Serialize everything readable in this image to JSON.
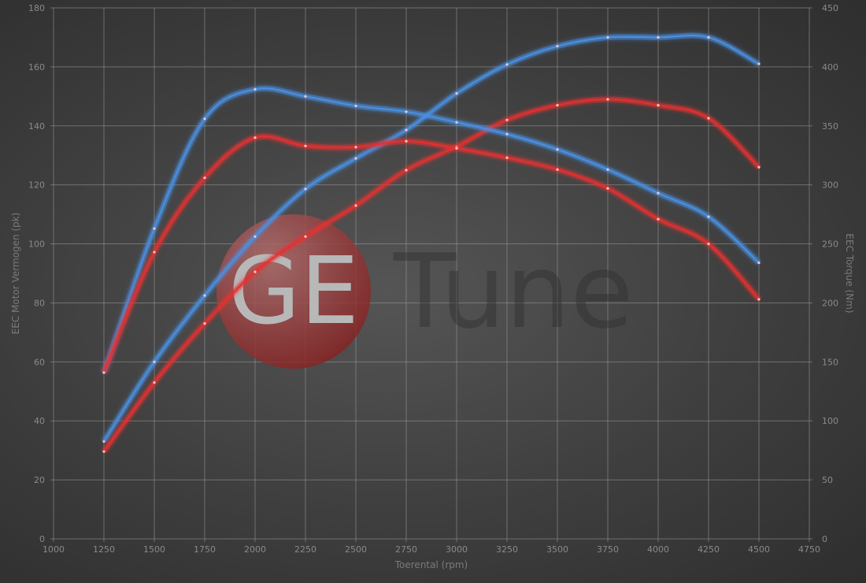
{
  "watermark": {
    "logo_letters": "GE",
    "text": "Tune"
  },
  "chart_data": {
    "type": "line",
    "title": "",
    "xlabel": "Toerental (rpm)",
    "ylabel": "EEC Motor Vermogen (pk)",
    "y2label": "EEC Torque (Nm)",
    "xlim": [
      1000,
      4750
    ],
    "ylim": [
      0,
      180
    ],
    "y2lim": [
      0,
      450
    ],
    "x_ticks": [
      "1000",
      "1250",
      "1500",
      "1750",
      "2000",
      "2250",
      "2500",
      "2750",
      "3000",
      "3250",
      "3500",
      "3750",
      "4000",
      "4250",
      "4500",
      "4750"
    ],
    "y_ticks": [
      "0",
      "20",
      "40",
      "60",
      "80",
      "100",
      "120",
      "140",
      "160",
      "180"
    ],
    "y2_ticks": [
      "0",
      "50",
      "100",
      "150",
      "200",
      "250",
      "300",
      "350",
      "400",
      "450"
    ],
    "grid": true,
    "x": [
      1250,
      1500,
      1750,
      2000,
      2250,
      2500,
      2750,
      3000,
      3250,
      3500,
      3750,
      4000,
      4250,
      4500
    ],
    "series": [
      {
        "axis": "left",
        "color": "#4a90e2",
        "values": [
          33,
          60,
          82.5,
          102.5,
          118.6,
          129,
          138.6,
          151,
          160.8,
          167,
          170,
          170,
          170,
          161
        ]
      },
      {
        "axis": "left",
        "color": "#e53030",
        "values": [
          29.6,
          53,
          73,
          90.5,
          102.5,
          113,
          125,
          133,
          142,
          147,
          149,
          147,
          142.6,
          126
        ]
      },
      {
        "axis": "right",
        "color": "#4a90e2",
        "values": [
          141,
          263,
          356,
          381,
          375,
          367,
          362,
          353,
          343,
          330,
          313,
          293,
          273,
          234
        ]
      },
      {
        "axis": "right",
        "color": "#e53030",
        "values": [
          141,
          243,
          306,
          340,
          333,
          332,
          337,
          331,
          323,
          313,
          297,
          271,
          250,
          203
        ]
      }
    ]
  }
}
